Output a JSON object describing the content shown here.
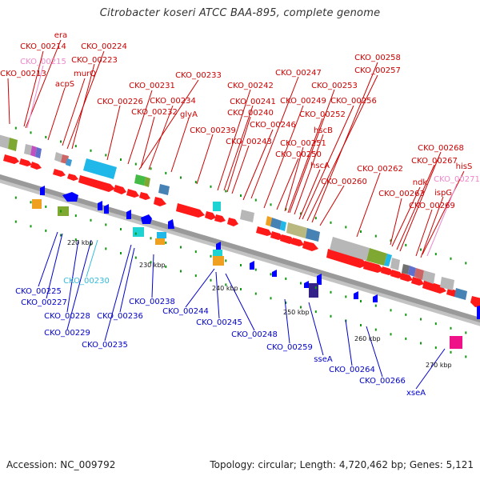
{
  "title": "Citrobacter koseri ATCC BAA-895, complete genome",
  "footer": {
    "accession": "Accession: NC_009792",
    "topology": "Topology: circular; Length: 4,720,462 bp; Genes: 5,121"
  },
  "colors": {
    "forward_label": "#cc0000",
    "reverse_label": "#0000cc",
    "pseudo_forward_label": "#ee88cc",
    "pseudo_reverse_label": "#33bbdd",
    "forward_arrow": "#ff0000",
    "reverse_arrow": "#0000ff",
    "backbone": "#888888"
  },
  "scale_ticks": [
    "220 kbp",
    "230 kbp",
    "240 kbp",
    "250 kbp",
    "260 kbp",
    "270 kbp"
  ],
  "forward_genes": [
    "era",
    "CKO_00214",
    "CKO_00215",
    "CKO_00213",
    "murQ",
    "acpS",
    "CKO_00224",
    "CKO_00223",
    "CKO_00226",
    "CKO_00231",
    "CKO_00233",
    "CKO_00232",
    "CKO_00234",
    "glyA",
    "CKO_00239",
    "CKO_00242",
    "CKO_00241",
    "CKO_00240",
    "CKO_00243",
    "CKO_00246",
    "CKO_00247",
    "CKO_00249",
    "CKO_00250",
    "CKO_00251",
    "CKO_00252",
    "CKO_00253",
    "hscB",
    "hscA",
    "CKO_00256",
    "CKO_00257",
    "CKO_00258",
    "CKO_00260",
    "CKO_00262",
    "CKO_00263",
    "ndk",
    "CKO_00267",
    "CKO_00268",
    "hisS",
    "CKO_00271",
    "ispG",
    "CKO_00269"
  ],
  "reverse_genes": [
    "CKO_00225",
    "CKO_00230",
    "CKO_00227",
    "CKO_00228",
    "CKO_00229",
    "CKO_00235",
    "CKO_00236",
    "CKO_00238",
    "CKO_00244",
    "CKO_00245",
    "CKO_00248",
    "CKO_00259",
    "sseA",
    "CKO_00264",
    "CKO_00266",
    "xseA"
  ]
}
